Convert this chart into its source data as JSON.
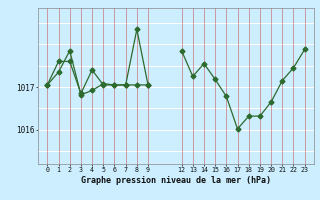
{
  "bg_color": "#cceeff",
  "line_color": "#2d6a2d",
  "series1a_x": [
    0,
    1,
    2,
    3,
    4,
    5,
    6,
    7,
    8,
    9
  ],
  "series1a_y": [
    1017.05,
    1017.35,
    1017.85,
    1016.82,
    1016.92,
    1017.08,
    1017.05,
    1017.05,
    1018.35,
    1017.05
  ],
  "series1b_x": [
    0,
    1,
    2,
    3,
    4,
    5,
    6,
    7,
    8,
    9
  ],
  "series1b_y": [
    1017.05,
    1017.6,
    1017.6,
    1016.85,
    1017.4,
    1017.05,
    1017.05,
    1017.05,
    1017.05,
    1017.05
  ],
  "series2_x": [
    12,
    13,
    14,
    15,
    16,
    17,
    18,
    19,
    20,
    21,
    22,
    23
  ],
  "series2_y": [
    1017.85,
    1017.25,
    1017.55,
    1017.18,
    1016.78,
    1016.02,
    1016.32,
    1016.32,
    1016.65,
    1017.15,
    1017.45,
    1017.88
  ],
  "ylim_min": 1015.2,
  "ylim_max": 1018.85,
  "ytick_values": [
    1016,
    1017
  ],
  "xticks_s1": [
    0,
    1,
    2,
    3,
    4,
    5,
    6,
    7,
    8,
    9
  ],
  "xticks_s2": [
    12,
    13,
    14,
    15,
    16,
    17,
    18,
    19,
    20,
    21,
    22,
    23
  ],
  "xlabel": "Graphe pression niveau de la mer (hPa)",
  "markersize": 2.5,
  "linewidth": 0.9
}
